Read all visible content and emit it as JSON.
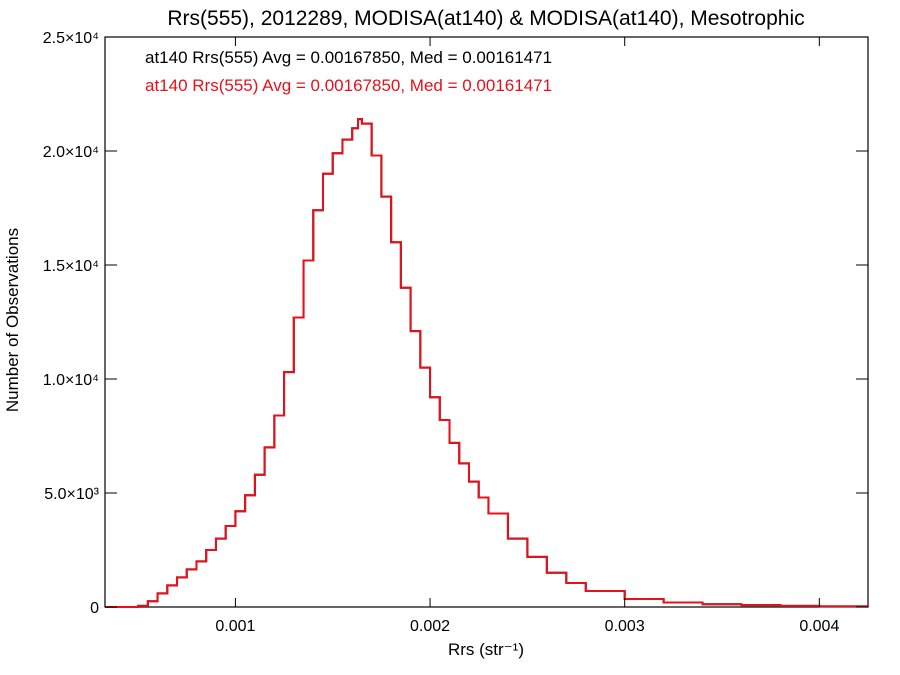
{
  "chart_data": {
    "type": "line",
    "title": "Rrs(555), 2012289, MODISA(at140) & MODISA(at140), Mesotrophic",
    "xlabel": "Rrs (str⁻¹)",
    "ylabel": "Number of Observations",
    "xlim": [
      0.00033,
      0.00425
    ],
    "ylim": [
      0,
      25000
    ],
    "x_ticks": [
      {
        "value": 0.001,
        "label": "0.001"
      },
      {
        "value": 0.002,
        "label": "0.002"
      },
      {
        "value": 0.003,
        "label": "0.003"
      },
      {
        "value": 0.004,
        "label": "0.004"
      }
    ],
    "y_ticks": [
      {
        "value": 0,
        "label": "0"
      },
      {
        "value": 5000,
        "label": "5.0×10³"
      },
      {
        "value": 10000,
        "label": "1.0×10⁴"
      },
      {
        "value": 15000,
        "label": "1.5×10⁴"
      },
      {
        "value": 20000,
        "label": "2.0×10⁴"
      },
      {
        "value": 25000,
        "label": "2.5×10⁴"
      }
    ],
    "annotations": [
      {
        "text": "at140 Rrs(555) Avg = 0.00167850, Med = 0.00161471",
        "color": "#000000"
      },
      {
        "text": "at140 Rrs(555) Avg = 0.00167850, Med = 0.00161471",
        "color": "#e8101a"
      }
    ],
    "series": [
      {
        "color": "#000000",
        "step": true,
        "x": [
          0.00033,
          0.0004,
          0.0005,
          0.00055,
          0.0006,
          0.00065,
          0.0007,
          0.00075,
          0.0008,
          0.00085,
          0.0009,
          0.00095,
          0.001,
          0.00105,
          0.0011,
          0.00115,
          0.0012,
          0.00125,
          0.0013,
          0.00135,
          0.0014,
          0.00145,
          0.0015,
          0.00155,
          0.0016,
          0.00163,
          0.00165,
          0.0017,
          0.00175,
          0.0018,
          0.00185,
          0.0019,
          0.00195,
          0.002,
          0.00205,
          0.0021,
          0.00215,
          0.0022,
          0.00225,
          0.0023,
          0.0024,
          0.0025,
          0.0026,
          0.0027,
          0.0028,
          0.003,
          0.0032,
          0.0034,
          0.0036,
          0.0038,
          0.004,
          0.00425
        ],
        "y": [
          0,
          0,
          50,
          250,
          600,
          950,
          1300,
          1650,
          2000,
          2500,
          3000,
          3550,
          4200,
          4900,
          5800,
          7000,
          8400,
          10300,
          12700,
          15200,
          17400,
          19000,
          19900,
          20500,
          21000,
          21400,
          21200,
          19800,
          18000,
          16000,
          14000,
          12100,
          10500,
          9200,
          8200,
          7200,
          6300,
          5500,
          4800,
          4100,
          3000,
          2200,
          1500,
          1050,
          700,
          350,
          200,
          120,
          80,
          50,
          30,
          15
        ]
      },
      {
        "color": "#e8101a",
        "step": true,
        "x": [
          0.00033,
          0.0004,
          0.0005,
          0.00055,
          0.0006,
          0.00065,
          0.0007,
          0.00075,
          0.0008,
          0.00085,
          0.0009,
          0.00095,
          0.001,
          0.00105,
          0.0011,
          0.00115,
          0.0012,
          0.00125,
          0.0013,
          0.00135,
          0.0014,
          0.00145,
          0.0015,
          0.00155,
          0.0016,
          0.00163,
          0.00165,
          0.0017,
          0.00175,
          0.0018,
          0.00185,
          0.0019,
          0.00195,
          0.002,
          0.00205,
          0.0021,
          0.00215,
          0.0022,
          0.00225,
          0.0023,
          0.0024,
          0.0025,
          0.0026,
          0.0027,
          0.0028,
          0.003,
          0.0032,
          0.0034,
          0.0036,
          0.0038,
          0.004,
          0.00425
        ],
        "y": [
          0,
          0,
          50,
          250,
          600,
          950,
          1300,
          1650,
          2000,
          2500,
          3000,
          3550,
          4200,
          4900,
          5800,
          7000,
          8400,
          10300,
          12700,
          15200,
          17400,
          19000,
          19900,
          20500,
          21000,
          21400,
          21200,
          19800,
          18000,
          16000,
          14000,
          12100,
          10500,
          9200,
          8200,
          7200,
          6300,
          5500,
          4800,
          4100,
          3000,
          2200,
          1500,
          1050,
          700,
          350,
          200,
          120,
          80,
          50,
          30,
          15
        ]
      }
    ]
  }
}
